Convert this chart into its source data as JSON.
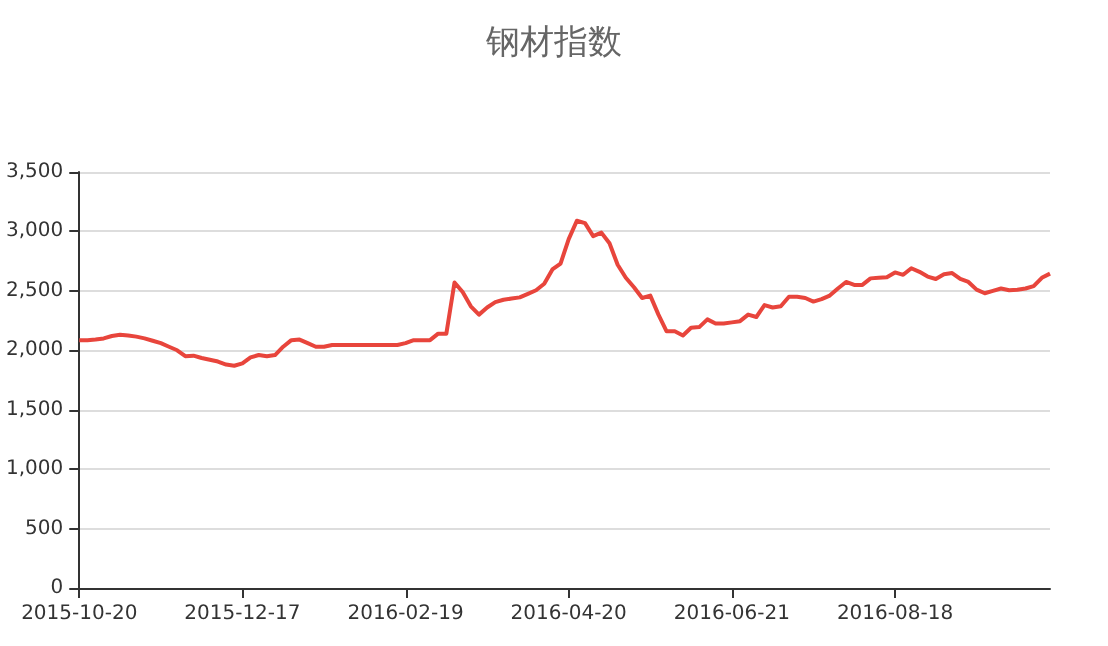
{
  "chart_data": {
    "type": "line",
    "title": "钢材指数",
    "categories": [
      "2015-10-20",
      null,
      null,
      null,
      null,
      null,
      null,
      null,
      null,
      null,
      null,
      null,
      null,
      null,
      null,
      null,
      null,
      null,
      null,
      null,
      "2015-12-17",
      null,
      null,
      null,
      null,
      null,
      null,
      null,
      null,
      null,
      null,
      null,
      null,
      null,
      null,
      null,
      null,
      null,
      null,
      null,
      "2016-02-19",
      null,
      null,
      null,
      null,
      null,
      null,
      null,
      null,
      null,
      null,
      null,
      null,
      null,
      null,
      null,
      null,
      null,
      null,
      null,
      "2016-04-20",
      null,
      null,
      null,
      null,
      null,
      null,
      null,
      null,
      null,
      null,
      null,
      null,
      null,
      null,
      null,
      null,
      null,
      null,
      null,
      "2016-06-21",
      null,
      null,
      null,
      null,
      null,
      null,
      null,
      null,
      null,
      null,
      null,
      null,
      null,
      null,
      null,
      null,
      null,
      null,
      null,
      "2016-08-18",
      null,
      null,
      null,
      null,
      null,
      null,
      null,
      null,
      null,
      null,
      null,
      null,
      null,
      null,
      null,
      null,
      null,
      null,
      null
    ],
    "series": [
      {
        "color": "#e8453c",
        "values": [
          2085,
          2085,
          2090,
          2100,
          2120,
          2130,
          2125,
          2115,
          2100,
          2080,
          2060,
          2030,
          2000,
          1950,
          1955,
          1935,
          1920,
          1905,
          1880,
          1870,
          1890,
          1940,
          1960,
          1950,
          1960,
          2030,
          2085,
          2090,
          2060,
          2030,
          2030,
          2045,
          2045,
          2045,
          2045,
          2045,
          2045,
          2045,
          2045,
          2045,
          2060,
          2085,
          2085,
          2085,
          2140,
          2140,
          2570,
          2490,
          2370,
          2300,
          2360,
          2405,
          2425,
          2435,
          2445,
          2475,
          2505,
          2560,
          2680,
          2730,
          2935,
          3090,
          3070,
          2960,
          2990,
          2900,
          2720,
          2610,
          2530,
          2440,
          2460,
          2300,
          2160,
          2160,
          2125,
          2190,
          2195,
          2260,
          2225,
          2225,
          2235,
          2245,
          2300,
          2280,
          2380,
          2360,
          2370,
          2450,
          2450,
          2440,
          2410,
          2430,
          2460,
          2520,
          2575,
          2550,
          2550,
          2605,
          2610,
          2615,
          2655,
          2635,
          2690,
          2660,
          2620,
          2600,
          2640,
          2650,
          2600,
          2575,
          2510,
          2480,
          2500,
          2520,
          2505,
          2510,
          2520,
          2540,
          2610,
          2645
        ]
      }
    ],
    "ylim": [
      0,
      3500
    ],
    "yticks": [
      {
        "value": 0,
        "label": "0"
      },
      {
        "value": 500,
        "label": "500"
      },
      {
        "value": 1000,
        "label": "1,000"
      },
      {
        "value": 1500,
        "label": "1,500"
      },
      {
        "value": 2000,
        "label": "2,000"
      },
      {
        "value": 2500,
        "label": "2,500"
      },
      {
        "value": 3000,
        "label": "3,000"
      },
      {
        "value": 3500,
        "label": "3,500"
      }
    ],
    "grid": "y",
    "marker": "none",
    "line_style": "solid"
  }
}
